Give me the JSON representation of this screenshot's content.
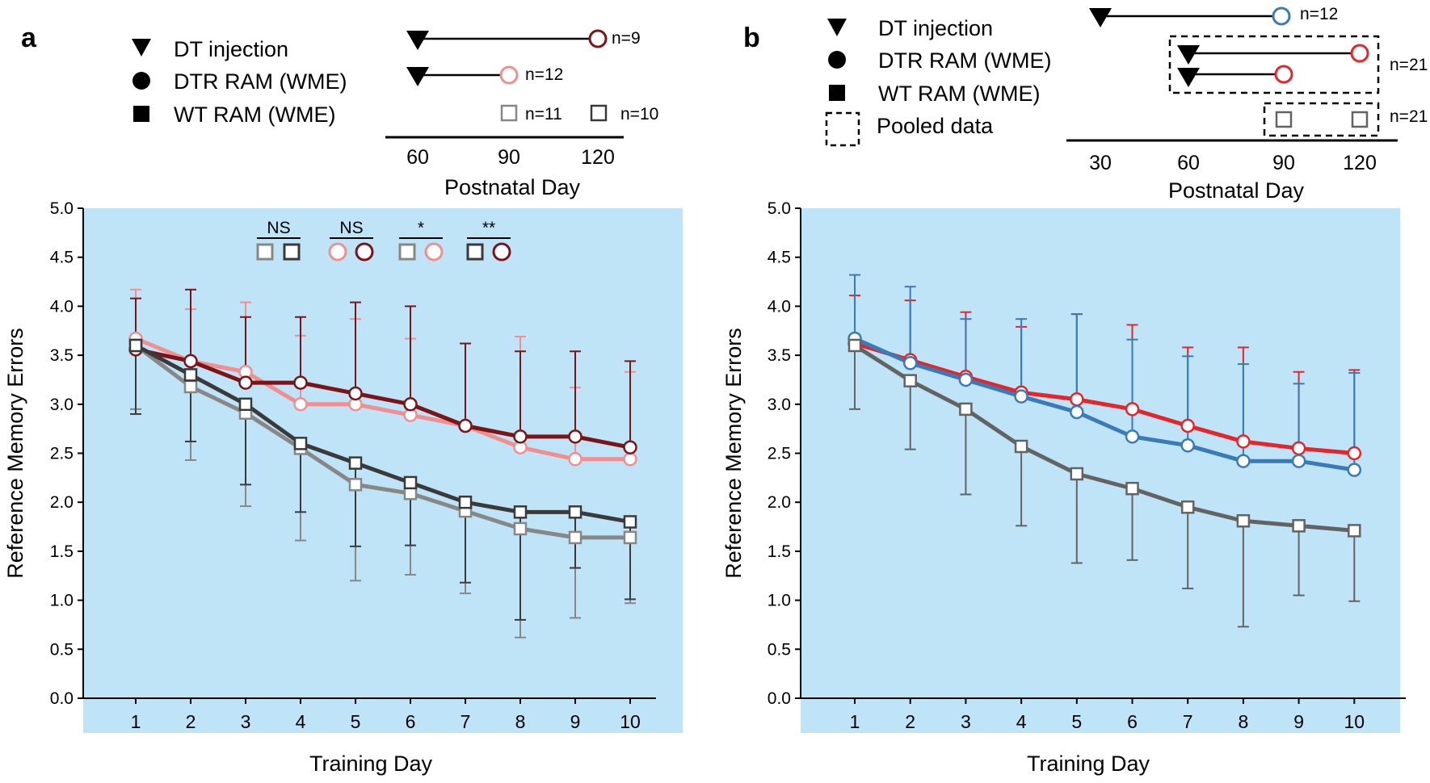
{
  "colors": {
    "plot_bg": "#bfe4f7",
    "dtr120": "#7a1416",
    "dtr90": "#f08f8f",
    "wt120": "#3a3a3a",
    "wt90": "#878787",
    "dtr_pooled": "#e4262a",
    "dtr30": "#3a7ab9",
    "wt_pooled": "#636363",
    "black": "#000000"
  },
  "chart_data": [
    {
      "panel": "a",
      "type": "line",
      "title": "",
      "xlabel": "Training Day",
      "ylabel": "Reference Memory Errors",
      "ylim": [
        0,
        5
      ],
      "yticks": [
        "0.0",
        "0.5",
        "1.0",
        "1.5",
        "2.0",
        "2.5",
        "3.0",
        "3.5",
        "4.0",
        "4.5",
        "5.0"
      ],
      "x": [
        1,
        2,
        3,
        4,
        5,
        6,
        7,
        8,
        9,
        10
      ],
      "legend": {
        "items": [
          {
            "symbol": "triangle",
            "label": "DT injection"
          },
          {
            "symbol": "circle",
            "label": "DTR RAM (WME)"
          },
          {
            "symbol": "square",
            "label": "WT RAM (WME)"
          }
        ]
      },
      "timeline": {
        "xlabel": "Postnatal Day",
        "ticks": [
          "60",
          "90",
          "120"
        ],
        "rows": [
          {
            "dt_day": 60,
            "end_day": 120,
            "marker": "circle",
            "color_key": "dtr120",
            "n": "n=9"
          },
          {
            "dt_day": 60,
            "end_day": 90,
            "marker": "circle",
            "color_key": "dtr90",
            "n": "n=12"
          }
        ],
        "wt": [
          {
            "day": 90,
            "color_key": "wt90",
            "n": "n=11"
          },
          {
            "day": 120,
            "color_key": "wt120",
            "n": "n=10"
          }
        ]
      },
      "significance": [
        {
          "label": "NS",
          "markers": [
            {
              "shape": "square",
              "color_key": "wt90"
            },
            {
              "shape": "square",
              "color_key": "wt120"
            }
          ]
        },
        {
          "label": "NS",
          "markers": [
            {
              "shape": "circle",
              "color_key": "dtr90"
            },
            {
              "shape": "circle",
              "color_key": "dtr120"
            }
          ]
        },
        {
          "label": "*",
          "markers": [
            {
              "shape": "square",
              "color_key": "wt90"
            },
            {
              "shape": "circle",
              "color_key": "dtr90"
            }
          ]
        },
        {
          "label": "**",
          "markers": [
            {
              "shape": "square",
              "color_key": "wt120"
            },
            {
              "shape": "circle",
              "color_key": "dtr120"
            }
          ]
        }
      ],
      "series": [
        {
          "name": "DTR RAM PND 90",
          "marker": "circle",
          "color_key": "dtr90",
          "values": [
            3.67,
            3.44,
            3.33,
            3.0,
            3.0,
            2.89,
            2.78,
            2.56,
            2.44,
            2.44
          ],
          "err_upper": [
            4.17,
            3.97,
            4.04,
            3.7,
            3.87,
            3.67,
            null,
            3.69,
            3.17,
            3.33
          ],
          "err_lower": []
        },
        {
          "name": "DTR RAM PND 120",
          "marker": "circle",
          "color_key": "dtr120",
          "values": [
            3.56,
            3.44,
            3.22,
            3.22,
            3.11,
            3.0,
            2.78,
            2.67,
            2.67,
            2.56
          ],
          "err_upper": [
            4.08,
            4.17,
            3.89,
            3.89,
            4.04,
            4.0,
            3.62,
            3.54,
            3.54,
            3.44
          ],
          "err_lower": []
        },
        {
          "name": "WT RAM PND 90",
          "marker": "square",
          "color_key": "wt90",
          "values": [
            3.6,
            3.18,
            2.91,
            2.55,
            2.18,
            2.09,
            1.91,
            1.73,
            1.64,
            1.64
          ],
          "err_upper": [],
          "err_lower": [
            2.95,
            2.43,
            1.96,
            1.61,
            1.2,
            1.26,
            1.07,
            0.62,
            0.82,
            0.97
          ]
        },
        {
          "name": "WT RAM PND 120",
          "marker": "square",
          "color_key": "wt120",
          "values": [
            3.6,
            3.3,
            3.0,
            2.6,
            2.4,
            2.2,
            2.0,
            1.9,
            1.9,
            1.8
          ],
          "err_upper": [],
          "err_lower": [
            2.9,
            2.62,
            2.18,
            1.9,
            1.55,
            1.56,
            1.18,
            0.8,
            1.33,
            1.01
          ]
        }
      ]
    },
    {
      "panel": "b",
      "type": "line",
      "title": "",
      "xlabel": "Training Day",
      "ylabel": "Reference Memory Errors",
      "ylim": [
        0,
        5
      ],
      "yticks": [
        "0.0",
        "0.5",
        "1.0",
        "1.5",
        "2.0",
        "2.5",
        "3.0",
        "3.5",
        "4.0",
        "4.5",
        "5.0"
      ],
      "x": [
        1,
        2,
        3,
        4,
        5,
        6,
        7,
        8,
        9,
        10
      ],
      "legend": {
        "items": [
          {
            "symbol": "triangle",
            "label": "DT injection"
          },
          {
            "symbol": "circle",
            "label": "DTR RAM (WME)"
          },
          {
            "symbol": "square",
            "label": "WT RAM (WME)"
          },
          {
            "symbol": "dashed-box",
            "label": "Pooled data"
          }
        ]
      },
      "timeline": {
        "xlabel": "Postnatal Day",
        "ticks": [
          "30",
          "60",
          "90",
          "120"
        ],
        "rows": [
          {
            "dt_day": 30,
            "end_day": 90,
            "marker": "circle",
            "color_key": "dtr30",
            "n": "n=12"
          },
          {
            "dt_day": 60,
            "end_day": 120,
            "marker": "circle",
            "color_key": "dtr_pooled",
            "n": ""
          },
          {
            "dt_day": 60,
            "end_day": 90,
            "marker": "circle",
            "color_key": "dtr_pooled",
            "n": ""
          }
        ],
        "pooled_dtr_n": "n=21",
        "wt": [
          {
            "day": 90,
            "color_key": "wt_pooled",
            "n": ""
          },
          {
            "day": 120,
            "color_key": "wt_pooled",
            "n": ""
          }
        ],
        "pooled_wt_n": "n=21"
      },
      "series": [
        {
          "name": "DTR RAM pooled (DT PND 60)",
          "marker": "circle",
          "color_key": "dtr_pooled",
          "values": [
            3.62,
            3.45,
            3.28,
            3.12,
            3.05,
            2.95,
            2.78,
            2.62,
            2.55,
            2.5
          ],
          "err_upper": [
            4.11,
            4.06,
            3.94,
            3.79,
            3.92,
            3.81,
            3.58,
            3.58,
            3.33,
            3.35
          ],
          "err_lower": []
        },
        {
          "name": "DTR RAM (DT PND 30)",
          "marker": "circle",
          "color_key": "dtr30",
          "values": [
            3.67,
            3.42,
            3.25,
            3.08,
            2.92,
            2.67,
            2.58,
            2.42,
            2.42,
            2.33
          ],
          "err_upper": [
            4.32,
            4.2,
            3.87,
            3.87,
            3.92,
            3.66,
            3.49,
            3.41,
            3.21,
            3.32
          ],
          "err_lower": []
        },
        {
          "name": "WT RAM pooled",
          "marker": "square",
          "color_key": "wt_pooled",
          "values": [
            3.6,
            3.24,
            2.95,
            2.57,
            2.29,
            2.14,
            1.95,
            1.81,
            1.76,
            1.71
          ],
          "err_upper": [],
          "err_lower": [
            2.95,
            2.54,
            2.08,
            1.76,
            1.38,
            1.41,
            1.12,
            0.73,
            1.05,
            0.99
          ]
        }
      ]
    }
  ]
}
